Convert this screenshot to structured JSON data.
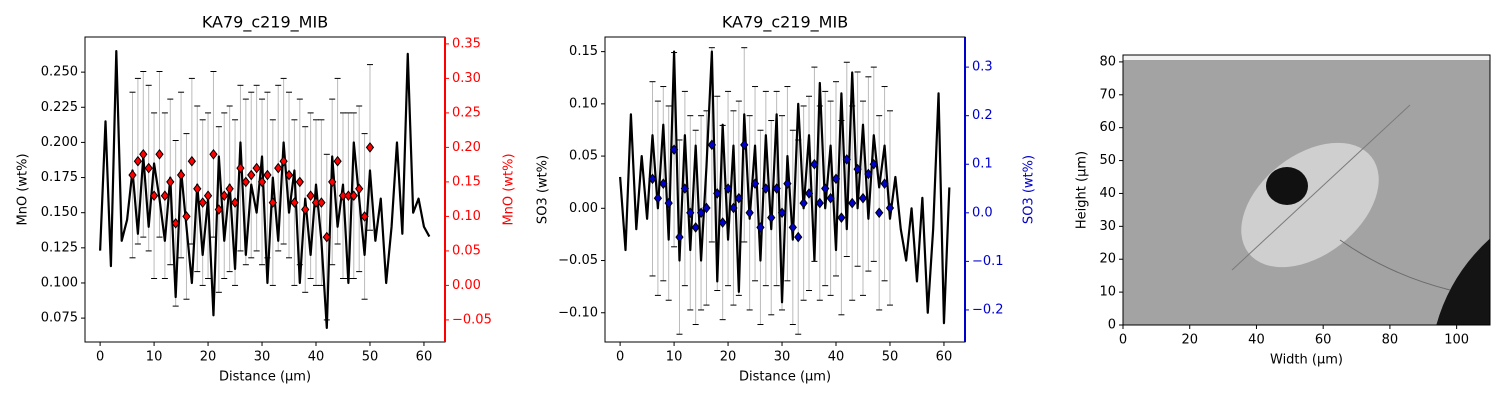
{
  "chart_data": [
    {
      "type": "line",
      "title": "KA79_c219_MIB",
      "xlabel": "Distance (µm)",
      "ylabel": "MnO (wt%)",
      "y2label": "MnO (wt%)",
      "y2color": "#ff0000",
      "xlim": [
        -2.8,
        63.9
      ],
      "xticks": [
        0,
        10,
        20,
        30,
        40,
        50,
        60
      ],
      "ylim": [
        0.058,
        0.275
      ],
      "yticks": [
        0.075,
        {
          "value": 0.1,
          "label": "0.100"
        },
        0.125,
        {
          "value": 0.15,
          "label": "0.150"
        },
        0.175,
        {
          "value": 0.2,
          "label": "0.200"
        },
        0.225,
        {
          "value": 0.25,
          "label": "0.250"
        }
      ],
      "y2lim": [
        -0.082,
        0.36
      ],
      "y2ticks": [
        {
          "value": -0.05,
          "label": "−0.05"
        },
        {
          "value": 0,
          "label": "0.00"
        },
        0.05,
        {
          "value": 0.1,
          "label": "0.10"
        },
        0.15,
        {
          "value": 0.2,
          "label": "0.20"
        },
        0.25,
        {
          "value": 0.3,
          "label": "0.30"
        },
        0.35
      ],
      "series": [
        {
          "color": "#000000",
          "x": [
            0,
            1,
            2,
            3,
            4,
            5,
            6,
            7,
            8,
            9,
            10,
            11,
            12,
            13,
            14,
            15,
            16,
            17,
            18,
            19,
            20,
            21,
            22,
            23,
            24,
            25,
            26,
            27,
            28,
            29,
            30,
            31,
            32,
            33,
            34,
            35,
            36,
            37,
            38,
            39,
            40,
            41,
            42,
            43,
            44,
            45,
            46,
            47,
            48,
            49,
            50,
            51,
            52,
            53,
            54,
            55,
            56,
            57,
            58,
            59,
            60,
            61
          ],
          "values": [
            0.123,
            0.215,
            0.112,
            0.265,
            0.13,
            0.145,
            0.18,
            0.135,
            0.19,
            0.14,
            0.185,
            0.16,
            0.13,
            0.175,
            0.09,
            0.18,
            0.14,
            0.1,
            0.17,
            0.12,
            0.16,
            0.077,
            0.19,
            0.13,
            0.17,
            0.11,
            0.2,
            0.12,
            0.17,
            0.15,
            0.19,
            0.1,
            0.175,
            0.13,
            0.2,
            0.15,
            0.18,
            0.1,
            0.16,
            0.12,
            0.17,
            0.13,
            0.068,
            0.19,
            0.14,
            0.17,
            0.1,
            0.2,
            0.16,
            0.12,
            0.18,
            0.13,
            0.16,
            0.1,
            0.14,
            0.2,
            0.135,
            0.263,
            0.15,
            0.16,
            0.14,
            0.133
          ]
        },
        {
          "color": "#ff0000",
          "axis": "y2",
          "style": "scatter",
          "yerr": 0.12,
          "x": [
            6,
            7,
            8,
            9,
            10,
            11,
            12,
            13,
            14,
            15,
            16,
            17,
            18,
            19,
            20,
            21,
            22,
            23,
            24,
            25,
            26,
            27,
            28,
            29,
            30,
            31,
            32,
            33,
            34,
            35,
            36,
            37,
            38,
            39,
            40,
            41,
            42,
            43,
            44,
            45,
            46,
            47,
            48,
            49,
            50
          ],
          "values": [
            0.16,
            0.18,
            0.19,
            0.17,
            0.13,
            0.19,
            0.13,
            0.15,
            0.09,
            0.16,
            0.1,
            0.18,
            0.14,
            0.12,
            0.13,
            0.19,
            0.11,
            0.13,
            0.14,
            0.12,
            0.17,
            0.15,
            0.16,
            0.17,
            0.15,
            0.16,
            0.12,
            0.17,
            0.18,
            0.16,
            0.12,
            0.15,
            0.11,
            0.13,
            0.12,
            0.12,
            0.07,
            0.15,
            0.18,
            0.13,
            0.13,
            0.13,
            0.14,
            0.1,
            0.2
          ]
        }
      ]
    },
    {
      "type": "line",
      "title": "KA79_c219_MIB",
      "xlabel": "Distance (µm)",
      "ylabel": "SO3 (wt%)",
      "y2label": "SO3 (wt%)",
      "y2color": "#0000cc",
      "xlim": [
        -2.8,
        63.9
      ],
      "xticks": [
        0,
        10,
        20,
        30,
        40,
        50,
        60
      ],
      "ylim": [
        -0.128,
        0.164
      ],
      "yticks": [
        {
          "value": -0.1,
          "label": "−0.10"
        },
        {
          "value": -0.05,
          "label": "−0.05"
        },
        {
          "value": 0,
          "label": "0.00"
        },
        0.05,
        {
          "value": 0.1,
          "label": "0.10"
        },
        0.15
      ],
      "y2lim": [
        -0.266,
        0.362
      ],
      "y2ticks": [
        {
          "value": -0.2,
          "label": "−0.2"
        },
        {
          "value": -0.1,
          "label": "−0.1"
        },
        {
          "value": 0,
          "label": "0.0"
        },
        0.1,
        0.2,
        0.3
      ],
      "series": [
        {
          "color": "#000000",
          "x": [
            0,
            1,
            2,
            3,
            4,
            5,
            6,
            7,
            8,
            9,
            10,
            11,
            12,
            13,
            14,
            15,
            16,
            17,
            18,
            19,
            20,
            21,
            22,
            23,
            24,
            25,
            26,
            27,
            28,
            29,
            30,
            31,
            32,
            33,
            34,
            35,
            36,
            37,
            38,
            39,
            40,
            41,
            42,
            43,
            44,
            45,
            46,
            47,
            48,
            49,
            50,
            51,
            52,
            53,
            54,
            55,
            56,
            57,
            58,
            59,
            60,
            61
          ],
          "values": [
            0.03,
            -0.04,
            0.09,
            -0.02,
            0.05,
            -0.01,
            0.07,
            0,
            0.08,
            -0.03,
            0.15,
            -0.05,
            0.07,
            -0.04,
            0.06,
            -0.05,
            0.04,
            0.15,
            -0.07,
            0.08,
            -0.03,
            0.06,
            -0.08,
            0.09,
            -0.01,
            0.06,
            -0.05,
            0.07,
            -0.02,
            0.09,
            -0.09,
            0.05,
            -0.03,
            0.1,
            0,
            0.07,
            -0.05,
            0.12,
            0,
            0.06,
            -0.04,
            0.11,
            -0.02,
            0.13,
            0,
            0.08,
            -0.01,
            0.07,
            0.02,
            0.06,
            -0.01,
            0.03,
            -0.02,
            -0.05,
            0,
            -0.07,
            0.01,
            -0.1,
            -0.02,
            0.11,
            -0.11,
            0.02
          ]
        },
        {
          "color": "#0000cc",
          "axis": "y2",
          "style": "scatter",
          "yerr": 0.2,
          "x": [
            6,
            7,
            8,
            9,
            10,
            11,
            12,
            13,
            14,
            15,
            16,
            17,
            18,
            19,
            20,
            21,
            22,
            23,
            24,
            25,
            26,
            27,
            28,
            29,
            30,
            31,
            32,
            33,
            34,
            35,
            36,
            37,
            38,
            39,
            40,
            41,
            42,
            43,
            44,
            45,
            46,
            47,
            48,
            49,
            50
          ],
          "values": [
            0.07,
            0.03,
            0.06,
            0.02,
            0.13,
            -0.05,
            0.05,
            0,
            -0.03,
            0,
            0.01,
            0.14,
            0.04,
            -0.02,
            0.05,
            0.01,
            0.03,
            0.14,
            0,
            0.06,
            -0.03,
            0.05,
            -0.01,
            0.05,
            0,
            0.06,
            -0.03,
            -0.05,
            0.02,
            0.04,
            0.1,
            0.02,
            0.05,
            0.03,
            0.07,
            -0.01,
            0.11,
            0.02,
            0.09,
            0.03,
            0.08,
            0.1,
            0,
            0.06,
            0.01
          ]
        }
      ]
    },
    {
      "type": "image",
      "xlabel": "Width (µm)",
      "ylabel": "Height (µm)",
      "xlim": [
        0,
        110
      ],
      "xticks": [
        0,
        20,
        40,
        60,
        80,
        100
      ],
      "ylim": [
        0,
        82.1
      ],
      "yticks": [
        0,
        10,
        20,
        30,
        40,
        50,
        60,
        70,
        80
      ]
    }
  ]
}
